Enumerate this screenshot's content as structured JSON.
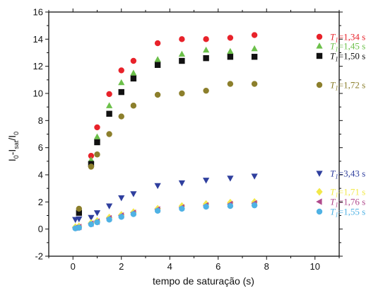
{
  "chart_data": {
    "type": "scatter",
    "title": "",
    "xlabel": "tempo de saturação (s)",
    "ylabel": "I0-Isat/I0",
    "ylabel_parts": {
      "a": "I",
      "a_sub": "0",
      "b": "-I",
      "b_sub": "sat",
      "c": "/I",
      "c_sub": "0"
    },
    "xlim": [
      -1,
      11
    ],
    "ylim": [
      -2,
      16
    ],
    "xticks": [
      0,
      2,
      4,
      6,
      8,
      10
    ],
    "yticks": [
      -2,
      0,
      2,
      4,
      6,
      8,
      10,
      12,
      14,
      16
    ],
    "grid": false,
    "legend_position": "right, beside curves",
    "series": [
      {
        "name": "T1=1,34 s",
        "label_main": "T",
        "label_sub": "1",
        "label_rest": "=1,34 s",
        "color": "#e8222a",
        "marker": "circle",
        "x": [
          0.75,
          1.0,
          1.5,
          2.0,
          2.5,
          3.5,
          4.5,
          5.5,
          6.5,
          7.5
        ],
        "y": [
          5.4,
          7.5,
          9.95,
          11.7,
          12.4,
          13.7,
          14.0,
          14.0,
          14.1,
          14.3
        ]
      },
      {
        "name": "T1=1,45 s",
        "label_main": "T",
        "label_sub": "1",
        "label_rest": "=1,45 s",
        "color": "#6cc04a",
        "marker": "triangle-up",
        "x": [
          0.75,
          1.0,
          1.5,
          2.0,
          2.5,
          3.5,
          4.5,
          5.5,
          6.5,
          7.5
        ],
        "y": [
          5.1,
          6.8,
          9.1,
          10.8,
          11.5,
          12.5,
          12.9,
          13.2,
          13.1,
          13.3
        ]
      },
      {
        "name": "T1=1,50 s",
        "label_main": "T",
        "label_sub": "1",
        "label_rest": "=1,50 s",
        "color": "#111111",
        "marker": "square",
        "x": [
          0.25,
          0.75,
          1.0,
          1.5,
          2.0,
          2.5,
          3.5,
          4.5,
          5.5,
          6.5,
          7.5
        ],
        "y": [
          1.2,
          4.8,
          6.4,
          8.5,
          10.1,
          11.1,
          12.1,
          12.4,
          12.6,
          12.7,
          12.7
        ]
      },
      {
        "name": "T1=1,72 s",
        "label_main": "T",
        "label_sub": "1",
        "label_rest": "=1,72 s",
        "color": "#8c7f2c",
        "marker": "circle",
        "x": [
          0.25,
          0.75,
          1.0,
          1.5,
          2.0,
          2.5,
          3.5,
          4.5,
          5.5,
          6.5,
          7.5
        ],
        "y": [
          1.5,
          4.6,
          5.5,
          7.0,
          8.3,
          9.1,
          9.9,
          10.0,
          10.2,
          10.7,
          10.7
        ]
      },
      {
        "name": "T1=3,43 s",
        "label_main": "T",
        "label_sub": "1",
        "label_rest": "=3,43 s",
        "color": "#2f3f9e",
        "marker": "triangle-down",
        "x": [
          0.1,
          0.25,
          0.75,
          1.0,
          1.5,
          2.0,
          2.5,
          3.5,
          4.5,
          5.5,
          6.5,
          7.5
        ],
        "y": [
          0.7,
          0.75,
          0.85,
          1.2,
          1.7,
          2.3,
          2.6,
          3.2,
          3.4,
          3.6,
          3.75,
          3.9
        ]
      },
      {
        "name": "T1=1,71 s",
        "label_main": "T",
        "label_sub": "1",
        "label_rest": "=1,71 s",
        "color": "#f2e84a",
        "marker": "diamond",
        "x": [
          0.1,
          0.25,
          0.75,
          1.0,
          1.5,
          2.0,
          2.5,
          3.5,
          4.5,
          5.5,
          6.5,
          7.5
        ],
        "y": [
          0.15,
          0.2,
          0.45,
          0.6,
          0.85,
          1.05,
          1.25,
          1.5,
          1.7,
          1.85,
          1.95,
          2.0
        ]
      },
      {
        "name": "T1=1,76 s",
        "label_main": "T",
        "label_sub": "1",
        "label_rest": "=1,76 s",
        "color": "#b04a8c",
        "marker": "triangle-left",
        "x": [
          0.1,
          0.25,
          0.75,
          1.0,
          1.5,
          2.0,
          2.5,
          3.5,
          4.5,
          5.5,
          6.5,
          7.5
        ],
        "y": [
          0.1,
          0.15,
          0.4,
          0.55,
          0.8,
          1.0,
          1.2,
          1.45,
          1.6,
          1.75,
          1.85,
          1.9
        ]
      },
      {
        "name": "T1=1,55 s",
        "label_main": "T",
        "label_sub": "1",
        "label_rest": "=1,55 s",
        "color": "#4fb2e4",
        "marker": "circle",
        "x": [
          0.1,
          0.25,
          0.75,
          1.0,
          1.5,
          2.0,
          2.5,
          3.5,
          4.5,
          5.5,
          6.5,
          7.5
        ],
        "y": [
          0.05,
          0.1,
          0.35,
          0.5,
          0.7,
          0.9,
          1.1,
          1.35,
          1.5,
          1.65,
          1.7,
          1.75
        ]
      }
    ]
  }
}
